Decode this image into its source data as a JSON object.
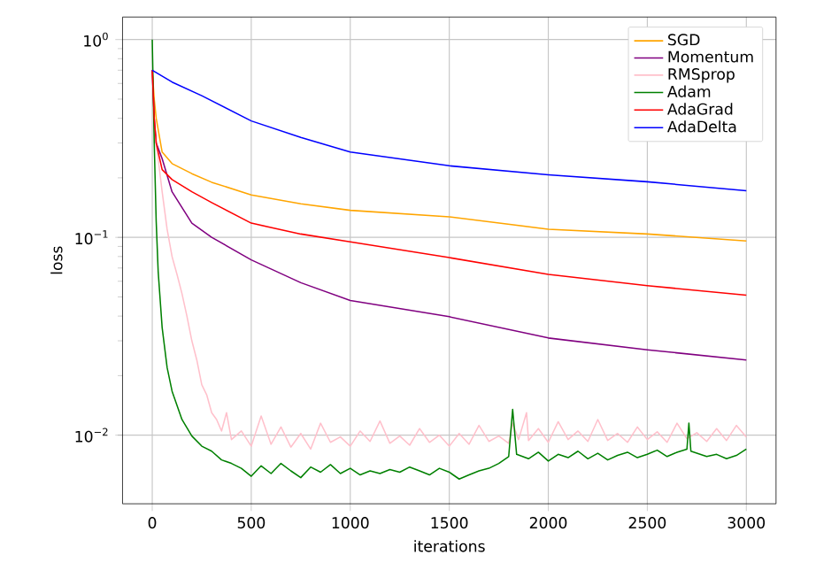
{
  "chart_data": {
    "type": "line",
    "xlabel": "iterations",
    "ylabel": "loss",
    "log": "y",
    "grid": true,
    "legend": "top right",
    "xlim": [
      -150,
      3150
    ],
    "ylim": [
      0.0045,
      1.3
    ],
    "xticks": [
      0,
      500,
      1000,
      1500,
      2000,
      2500,
      3000
    ],
    "yticks": [
      {
        "value": 0.01,
        "label": "10$^{−2}$"
      },
      {
        "value": 0.1,
        "label": "10$^{−1}$"
      },
      {
        "value": 1,
        "label": "10$^{0}$"
      }
    ],
    "series": [
      {
        "name": "SGD",
        "color": "#ffa500",
        "x": [
          0,
          10,
          20,
          50,
          100,
          200,
          300,
          500,
          750,
          1000,
          1500,
          2000,
          2500,
          3000
        ],
        "values": [
          0.7,
          0.5,
          0.4,
          0.27,
          0.236,
          0.21,
          0.19,
          0.164,
          0.148,
          0.137,
          0.127,
          0.11,
          0.104,
          0.096
        ]
      },
      {
        "name": "Momentum",
        "color": "#800080",
        "x": [
          0,
          10,
          20,
          50,
          100,
          200,
          300,
          500,
          750,
          1000,
          1500,
          2000,
          2500,
          3000
        ],
        "values": [
          0.7,
          0.4,
          0.3,
          0.25,
          0.17,
          0.118,
          0.1,
          0.077,
          0.059,
          0.048,
          0.0397,
          0.031,
          0.027,
          0.024
        ]
      },
      {
        "name": "RMSprop",
        "color": "#ffc0cb",
        "x": [
          10,
          30,
          50,
          75,
          100,
          125,
          150,
          175,
          200,
          225,
          250,
          275,
          300,
          325,
          350,
          375,
          400,
          450,
          500,
          550,
          600,
          650,
          700,
          750,
          800,
          850,
          900,
          950,
          1000,
          1050,
          1100,
          1150,
          1200,
          1250,
          1300,
          1350,
          1400,
          1450,
          1500,
          1550,
          1600,
          1650,
          1700,
          1750,
          1800,
          1820,
          1850,
          1890,
          1900,
          1950,
          2000,
          2050,
          2100,
          2150,
          2200,
          2250,
          2300,
          2350,
          2400,
          2450,
          2500,
          2550,
          2600,
          2650,
          2700,
          2750,
          2800,
          2850,
          2900,
          2950,
          3000
        ],
        "values": [
          0.35,
          0.25,
          0.17,
          0.11,
          0.08,
          0.065,
          0.052,
          0.04,
          0.03,
          0.024,
          0.018,
          0.016,
          0.013,
          0.012,
          0.0105,
          0.013,
          0.0095,
          0.0105,
          0.0088,
          0.0125,
          0.009,
          0.011,
          0.0087,
          0.0102,
          0.0085,
          0.0115,
          0.0092,
          0.0098,
          0.0088,
          0.0105,
          0.0093,
          0.0118,
          0.0091,
          0.0099,
          0.0089,
          0.0108,
          0.0092,
          0.01,
          0.0088,
          0.0102,
          0.009,
          0.0112,
          0.0093,
          0.0099,
          0.0091,
          0.0115,
          0.0095,
          0.013,
          0.0094,
          0.0108,
          0.0092,
          0.0117,
          0.0095,
          0.0105,
          0.0093,
          0.012,
          0.0094,
          0.0102,
          0.0092,
          0.011,
          0.0095,
          0.0104,
          0.0092,
          0.0115,
          0.0096,
          0.0103,
          0.0093,
          0.0108,
          0.0094,
          0.0112,
          0.0098
        ]
      },
      {
        "name": "Adam",
        "color": "#008000",
        "x": [
          0,
          10,
          20,
          30,
          50,
          75,
          100,
          150,
          200,
          250,
          300,
          350,
          400,
          450,
          500,
          550,
          600,
          650,
          700,
          750,
          800,
          850,
          900,
          950,
          1000,
          1050,
          1100,
          1150,
          1200,
          1250,
          1300,
          1350,
          1400,
          1450,
          1500,
          1550,
          1600,
          1650,
          1700,
          1750,
          1800,
          1820,
          1840,
          1900,
          1950,
          2000,
          2050,
          2100,
          2150,
          2200,
          2250,
          2300,
          2350,
          2400,
          2450,
          2500,
          2550,
          2600,
          2650,
          2700,
          2710,
          2720,
          2800,
          2850,
          2900,
          2950,
          3000
        ],
        "values": [
          1.0,
          0.3,
          0.12,
          0.067,
          0.035,
          0.022,
          0.0167,
          0.012,
          0.0099,
          0.0088,
          0.0083,
          0.0075,
          0.0072,
          0.0068,
          0.0062,
          0.007,
          0.0064,
          0.0072,
          0.0066,
          0.0061,
          0.0069,
          0.0065,
          0.0071,
          0.0064,
          0.0068,
          0.0063,
          0.0066,
          0.0064,
          0.0067,
          0.0065,
          0.0069,
          0.0066,
          0.0063,
          0.0068,
          0.0065,
          0.006,
          0.0063,
          0.0066,
          0.0068,
          0.0072,
          0.0078,
          0.0135,
          0.008,
          0.0076,
          0.0082,
          0.0074,
          0.008,
          0.0077,
          0.0083,
          0.0076,
          0.0081,
          0.0075,
          0.0079,
          0.0082,
          0.0077,
          0.008,
          0.0084,
          0.0078,
          0.0082,
          0.0085,
          0.0115,
          0.0083,
          0.0078,
          0.008,
          0.0076,
          0.0079,
          0.0085
        ]
      },
      {
        "name": "AdaGrad",
        "color": "#ff0000",
        "x": [
          0,
          10,
          20,
          50,
          100,
          200,
          300,
          500,
          750,
          1000,
          1500,
          2000,
          2500,
          3000
        ],
        "values": [
          0.7,
          0.4,
          0.3,
          0.22,
          0.196,
          0.17,
          0.15,
          0.118,
          0.104,
          0.095,
          0.079,
          0.065,
          0.057,
          0.051
        ]
      },
      {
        "name": "AdaDelta",
        "color": "#0000ff",
        "x": [
          0,
          100,
          250,
          500,
          750,
          1000,
          1500,
          2000,
          2500,
          3000
        ],
        "values": [
          0.7,
          0.61,
          0.52,
          0.388,
          0.32,
          0.27,
          0.23,
          0.207,
          0.191,
          0.172
        ]
      }
    ]
  }
}
